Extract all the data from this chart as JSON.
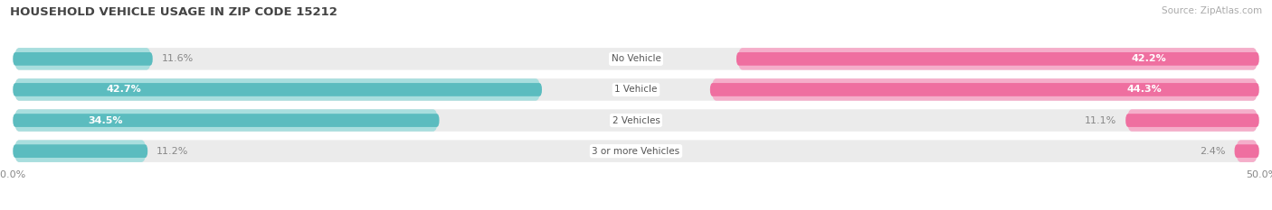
{
  "title": "HOUSEHOLD VEHICLE USAGE IN ZIP CODE 15212",
  "source": "Source: ZipAtlas.com",
  "categories": [
    "No Vehicle",
    "1 Vehicle",
    "2 Vehicles",
    "3 or more Vehicles"
  ],
  "owner_values": [
    11.6,
    42.7,
    34.5,
    11.2
  ],
  "renter_values": [
    42.2,
    44.3,
    11.1,
    2.4
  ],
  "owner_color": "#5BBCBF",
  "owner_color_light": "#A8DEDE",
  "renter_color": "#EF6FA0",
  "renter_color_light": "#F5AECA",
  "bar_bg_color": "#EBEBEB",
  "bar_bg_shadow": "#D8D8D8",
  "axis_limit": 50.0,
  "bar_height": 0.72,
  "figsize": [
    14.06,
    2.33
  ],
  "dpi": 100,
  "title_fontsize": 9.5,
  "source_fontsize": 7.5,
  "label_fontsize": 8,
  "cat_fontsize": 7.5
}
